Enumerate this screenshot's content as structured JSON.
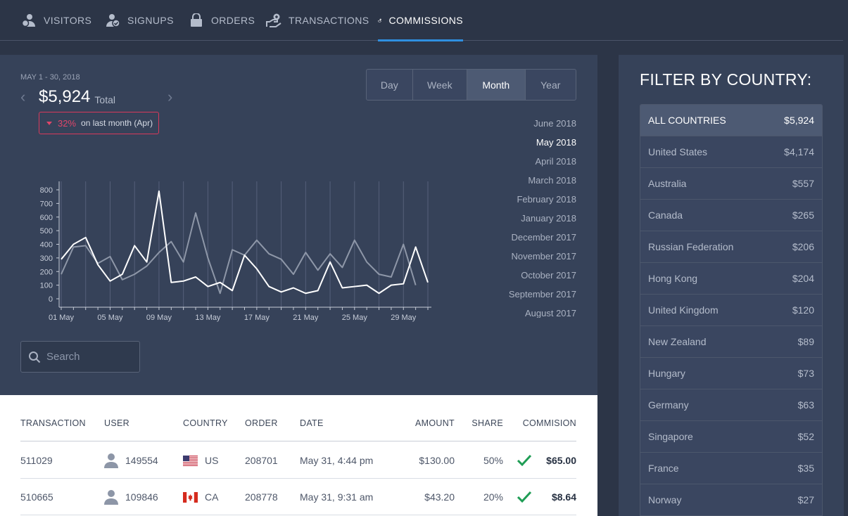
{
  "nav": {
    "tabs": [
      {
        "label": "VISITORS",
        "icon": "visitors-icon"
      },
      {
        "label": "SIGNUPS",
        "icon": "signups-icon"
      },
      {
        "label": "ORDERS",
        "icon": "orders-icon"
      },
      {
        "label": "TRANSACTIONS",
        "icon": "transactions-icon"
      },
      {
        "label": "COMMISSIONS",
        "icon": "commissions-icon",
        "active": true
      }
    ]
  },
  "summary": {
    "range": "MAY 1 - 30, 2018",
    "total_value": "$5,924",
    "total_label": "Total",
    "delta_pct": "32%",
    "delta_text": "on last month (Apr)",
    "delta_color": "#e0466a"
  },
  "period_toggle": {
    "options": [
      "Day",
      "Week",
      "Month",
      "Year"
    ],
    "selected": "Month"
  },
  "months": [
    "June 2018",
    "May 2018",
    "April 2018",
    "March 2018",
    "February 2018",
    "January 2018",
    "December 2017",
    "November 2017",
    "October 2017",
    "September 2017",
    "August 2017"
  ],
  "selected_month": "May 2018",
  "search": {
    "placeholder": "Search"
  },
  "chart_data": {
    "type": "line",
    "y_ticks": [
      "0",
      "100",
      "200",
      "300",
      "400",
      "500",
      "600",
      "700",
      "800"
    ],
    "ylim": [
      0,
      800
    ],
    "x_tick_labels": [
      "01 May",
      "05 May",
      "09 May",
      "13 May",
      "17 May",
      "21 May",
      "25 May",
      "29 May"
    ],
    "x_tick_days": [
      1,
      5,
      9,
      13,
      17,
      21,
      25,
      29
    ],
    "x": [
      1,
      2,
      3,
      4,
      5,
      6,
      7,
      8,
      9,
      10,
      11,
      12,
      13,
      14,
      15,
      16,
      17,
      18,
      19,
      20,
      21,
      22,
      23,
      24,
      25,
      26,
      27,
      28,
      29,
      30,
      31
    ],
    "series": [
      {
        "color": "#ffffff",
        "values": [
          290,
          400,
          450,
          250,
          130,
          180,
          390,
          270,
          790,
          120,
          130,
          160,
          90,
          120,
          60,
          320,
          220,
          90,
          50,
          80,
          40,
          60,
          270,
          80,
          90,
          100,
          40,
          100,
          110,
          380,
          120
        ]
      },
      {
        "color": "#8e97a8",
        "values": [
          180,
          380,
          390,
          260,
          310,
          140,
          180,
          240,
          340,
          420,
          270,
          630,
          300,
          40,
          360,
          320,
          430,
          330,
          290,
          180,
          340,
          210,
          330,
          230,
          430,
          270,
          180,
          160,
          400,
          100,
          null
        ]
      }
    ],
    "grid": true
  },
  "table": {
    "headers": [
      "TRANSACTION",
      "USER",
      "COUNTRY",
      "ORDER",
      "DATE",
      "AMOUNT",
      "SHARE",
      "COMMISION"
    ],
    "rows": [
      {
        "transaction": "511029",
        "user": "149554",
        "country": "US",
        "order": "208701",
        "date": "May 31, 4:44 pm",
        "amount": "$130.00",
        "share": "50%",
        "commission": "$65.00"
      },
      {
        "transaction": "510665",
        "user": "109846",
        "country": "CA",
        "order": "208778",
        "date": "May 31, 9:31 am",
        "amount": "$43.20",
        "share": "20%",
        "commission": "$8.64"
      }
    ]
  },
  "filter": {
    "title": "FILTER BY COUNTRY:",
    "items": [
      {
        "name": "ALL COUNTRIES",
        "value": "$5,924",
        "active": true
      },
      {
        "name": "United States",
        "value": "$4,174"
      },
      {
        "name": "Australia",
        "value": "$557"
      },
      {
        "name": "Canada",
        "value": "$265"
      },
      {
        "name": "Russian Federation",
        "value": "$206"
      },
      {
        "name": "Hong Kong",
        "value": "$204"
      },
      {
        "name": "United Kingdom",
        "value": "$120"
      },
      {
        "name": "New Zealand",
        "value": "$89"
      },
      {
        "name": "Hungary",
        "value": "$73"
      },
      {
        "name": "Germany",
        "value": "$63"
      },
      {
        "name": "Singapore",
        "value": "$52"
      },
      {
        "name": "France",
        "value": "$35"
      },
      {
        "name": "Norway",
        "value": "$27"
      }
    ]
  },
  "colors": {
    "accent": "#2f8fe0",
    "success": "#1f9d55",
    "panel": "#364259"
  }
}
